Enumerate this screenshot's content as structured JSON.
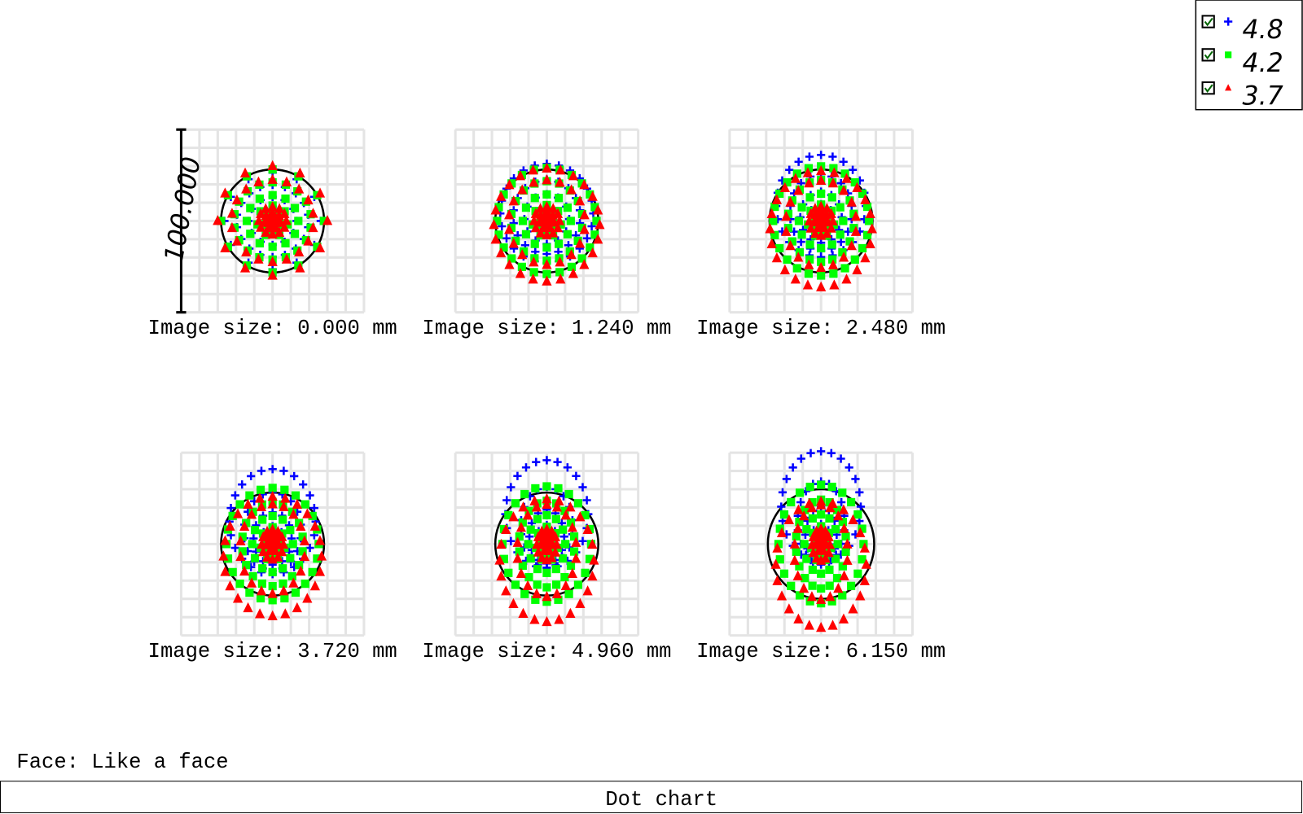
{
  "legend": [
    {
      "label": "4.8",
      "color": "#0000ff",
      "marker": "plus"
    },
    {
      "label": "4.2",
      "color": "#00ff00",
      "marker": "square"
    },
    {
      "label": "3.7",
      "color": "#ff0000",
      "marker": "triangle"
    }
  ],
  "scale_label": "100.000",
  "panels": [
    {
      "label": "Image size: 0.000 mm"
    },
    {
      "label": "Image size: 1.240 mm"
    },
    {
      "label": "Image size: 2.480 mm"
    },
    {
      "label": "Image size: 3.720 mm"
    },
    {
      "label": "Image size: 4.960 mm"
    },
    {
      "label": "Image size: 6.150 mm"
    }
  ],
  "face_label": "Face: Like a face",
  "status": "Dot chart"
}
